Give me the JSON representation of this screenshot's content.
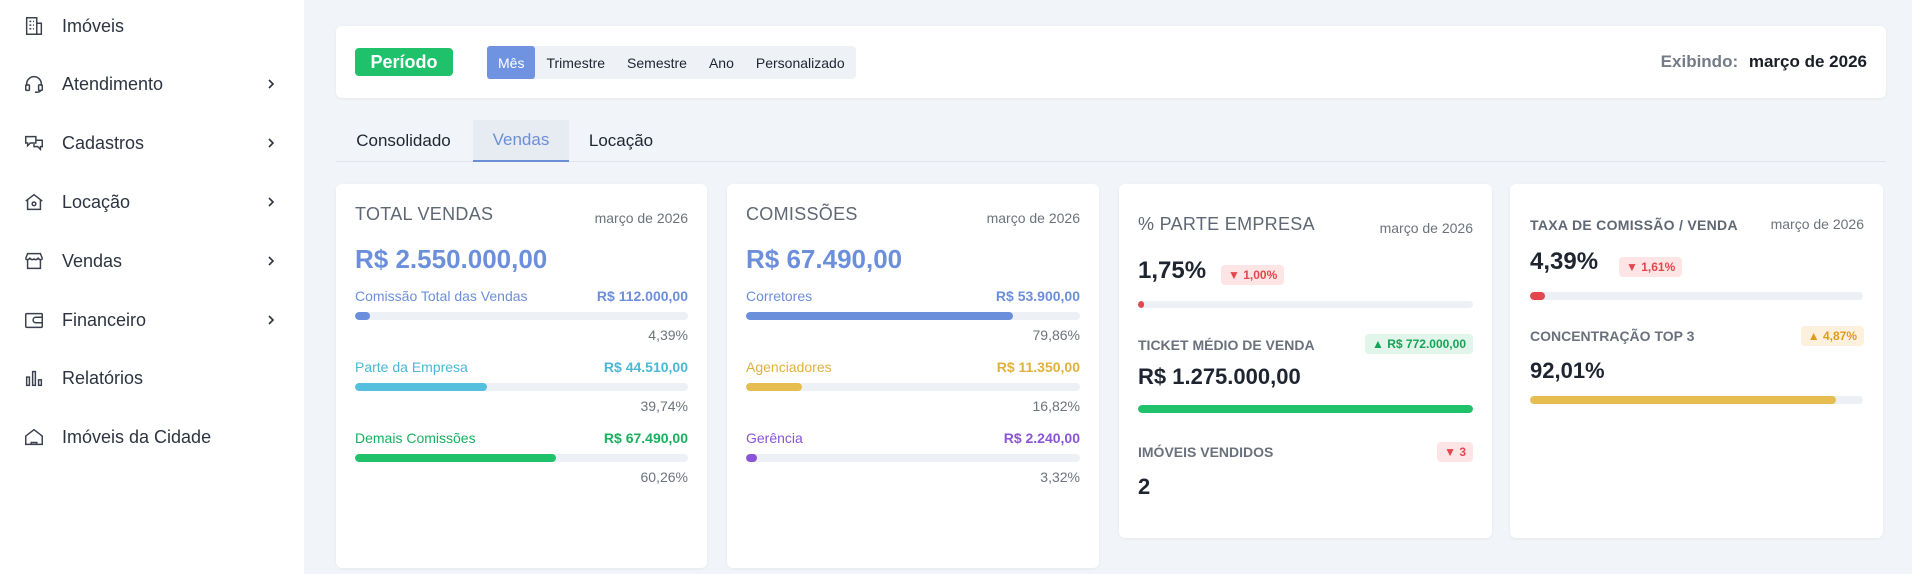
{
  "sidebar": {
    "items": [
      {
        "label": "Imóveis",
        "icon": "building-icon",
        "has_chevron": false
      },
      {
        "label": "Atendimento",
        "icon": "headset-icon",
        "has_chevron": true
      },
      {
        "label": "Cadastros",
        "icon": "chat-bubbles-icon",
        "has_chevron": true
      },
      {
        "label": "Locação",
        "icon": "house-icon",
        "has_chevron": true
      },
      {
        "label": "Vendas",
        "icon": "store-icon",
        "has_chevron": true
      },
      {
        "label": "Financeiro",
        "icon": "wallet-icon",
        "has_chevron": true
      },
      {
        "label": "Relatórios",
        "icon": "bar-chart-icon",
        "has_chevron": false
      },
      {
        "label": "Imóveis da Cidade",
        "icon": "home-outline-icon",
        "has_chevron": false
      }
    ]
  },
  "period": {
    "badge": "Período",
    "options": [
      "Mês",
      "Trimestre",
      "Semestre",
      "Ano",
      "Personalizado"
    ],
    "selected": "Mês",
    "showing_label": "Exibindo:",
    "showing_value": "março de 2026"
  },
  "tabs": {
    "items": [
      "Consolidado",
      "Vendas",
      "Locação"
    ],
    "active": "Vendas"
  },
  "colors": {
    "accent": "#6c8fdc",
    "green": "#1fc16b",
    "cyan": "#55c0dd",
    "gold": "#e6bd50",
    "purple": "#8a54d8",
    "red": "#e3464d",
    "orange": "#e29a1c"
  },
  "cards": {
    "total_vendas": {
      "title": "TOTAL VENDAS",
      "date": "março de 2026",
      "value": "R$ 2.550.000,00",
      "rows": [
        {
          "label": "Comissão Total das Vendas",
          "value": "R$ 112.000,00",
          "pct": "4,39%",
          "fraction": 0.0439
        },
        {
          "label": "Parte da Empresa",
          "value": "R$ 44.510,00",
          "pct": "39,74%",
          "fraction": 0.3974
        },
        {
          "label": "Demais Comissões",
          "value": "R$ 67.490,00",
          "pct": "60,26%",
          "fraction": 0.6026
        }
      ]
    },
    "comissoes": {
      "title": "COMISSÕES",
      "date": "março de 2026",
      "value": "R$ 67.490,00",
      "rows": [
        {
          "label": "Corretores",
          "value": "R$ 53.900,00",
          "pct": "79,86%",
          "fraction": 0.7986
        },
        {
          "label": "Agenciadores",
          "value": "R$ 11.350,00",
          "pct": "16,82%",
          "fraction": 0.1682
        },
        {
          "label": "Gerência",
          "value": "R$ 2.240,00",
          "pct": "3,32%",
          "fraction": 0.0332
        }
      ]
    },
    "parte_empresa": {
      "title": "% PARTE EMPRESA",
      "date": "março de 2026",
      "value": "1,75%",
      "delta": "▼ 1,00%",
      "fraction": 0.0175,
      "ticket_label": "TICKET MÉDIO DE VENDA",
      "ticket_delta": "▲ R$ 772.000,00",
      "ticket_value": "R$ 1.275.000,00",
      "ticket_fraction": 1.0,
      "vendidos_label": "IMÓVEIS VENDIDOS",
      "vendidos_delta": "▼ 3",
      "vendidos_value": "2"
    },
    "taxa_comissao": {
      "title": "TAXA DE COMISSÃO / VENDA",
      "date": "março de 2026",
      "value": "4,39%",
      "delta": "▼ 1,61%",
      "fraction": 0.0439,
      "top3_label": "CONCENTRAÇÃO TOP 3",
      "top3_delta": "▲ 4,87%",
      "top3_value": "92,01%",
      "top3_fraction": 0.9201
    }
  }
}
